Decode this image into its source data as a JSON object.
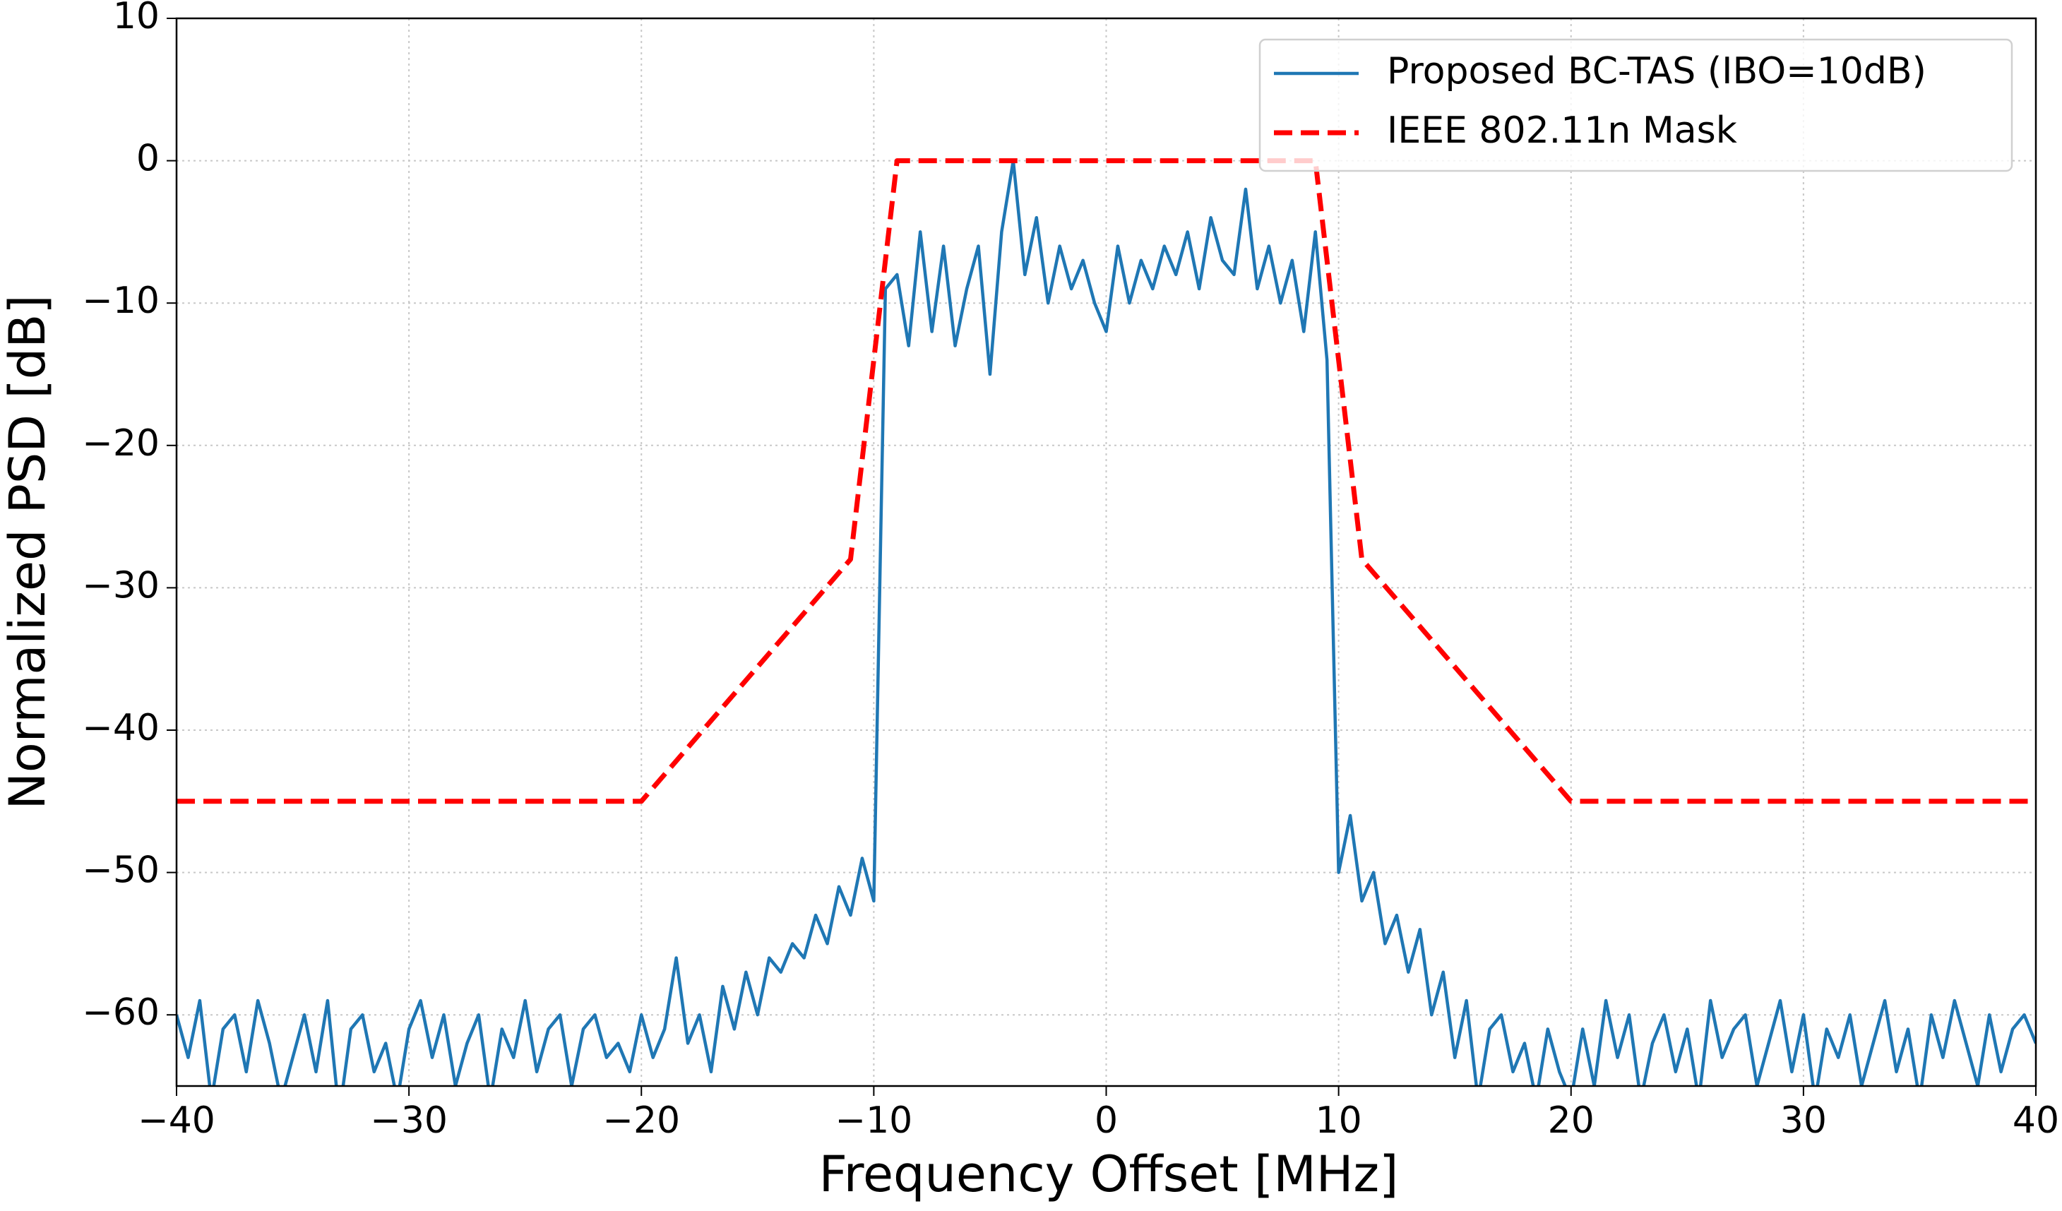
{
  "chart_data": {
    "type": "line",
    "xlabel": "Frequency Offset [MHz]",
    "ylabel": "Normalized PSD [dB]",
    "xlim": [
      -40,
      40
    ],
    "ylim": [
      -65,
      10
    ],
    "xticks": [
      {
        "value": -40,
        "label": "−40"
      },
      {
        "value": -30,
        "label": "−30"
      },
      {
        "value": -20,
        "label": "−20"
      },
      {
        "value": -10,
        "label": "−10"
      },
      0,
      10,
      20,
      30,
      40
    ],
    "yticks": [
      {
        "value": -60,
        "label": "−60"
      },
      {
        "value": -50,
        "label": "−50"
      },
      {
        "value": -40,
        "label": "−40"
      },
      {
        "value": -30,
        "label": "−30"
      },
      {
        "value": -20,
        "label": "−20"
      },
      {
        "value": -10,
        "label": "−10"
      },
      0,
      10
    ],
    "grid": true,
    "legend": "upper right",
    "series": [
      {
        "name": "Proposed BC-TAS (IBO=10dB)",
        "color": "#1f77b4",
        "style": "solid",
        "x": [
          -40,
          -39.5,
          -39,
          -38.5,
          -38,
          -37.5,
          -37,
          -36.5,
          -36,
          -35.5,
          -35,
          -34.5,
          -34,
          -33.5,
          -33,
          -32.5,
          -32,
          -31.5,
          -31,
          -30.5,
          -30,
          -29.5,
          -29,
          -28.5,
          -28,
          -27.5,
          -27,
          -26.5,
          -26,
          -25.5,
          -25,
          -24.5,
          -24,
          -23.5,
          -23,
          -22.5,
          -22,
          -21.5,
          -21,
          -20.5,
          -20,
          -19.5,
          -19,
          -18.5,
          -18,
          -17.5,
          -17,
          -16.5,
          -16,
          -15.5,
          -15,
          -14.5,
          -14,
          -13.5,
          -13,
          -12.5,
          -12,
          -11.5,
          -11,
          -10.5,
          -10,
          -9.5,
          -9,
          -8.5,
          -8,
          -7.5,
          -7,
          -6.5,
          -6,
          -5.5,
          -5,
          -4.5,
          -4,
          -3.5,
          -3,
          -2.5,
          -2,
          -1.5,
          -1,
          -0.5,
          0,
          0.5,
          1,
          1.5,
          2,
          2.5,
          3,
          3.5,
          4,
          4.5,
          5,
          5.5,
          6,
          6.5,
          7,
          7.5,
          8,
          8.5,
          9,
          9.5,
          10,
          10.5,
          11,
          11.5,
          12,
          12.5,
          13,
          13.5,
          14,
          14.5,
          15,
          15.5,
          16,
          16.5,
          17,
          17.5,
          18,
          18.5,
          19,
          19.5,
          20,
          20.5,
          21,
          21.5,
          22,
          22.5,
          23,
          23.5,
          24,
          24.5,
          25,
          25.5,
          26,
          26.5,
          27,
          27.5,
          28,
          28.5,
          29,
          29.5,
          30,
          30.5,
          31,
          31.5,
          32,
          32.5,
          33,
          33.5,
          34,
          34.5,
          35,
          35.5,
          36,
          36.5,
          37,
          37.5,
          38,
          38.5,
          39,
          39.5,
          40
        ],
        "values": [
          -60,
          -63,
          -59,
          -66,
          -61,
          -60,
          -64,
          -59,
          -62,
          -66,
          -63,
          -60,
          -64,
          -59,
          -67,
          -61,
          -60,
          -64,
          -62,
          -66,
          -61,
          -59,
          -63,
          -60,
          -65,
          -62,
          -60,
          -66,
          -61,
          -63,
          -59,
          -64,
          -61,
          -60,
          -65,
          -61,
          -60,
          -63,
          -62,
          -64,
          -60,
          -63,
          -61,
          -56,
          -62,
          -60,
          -64,
          -58,
          -61,
          -57,
          -60,
          -56,
          -57,
          -55,
          -56,
          -53,
          -55,
          -51,
          -53,
          -49,
          -52,
          -9,
          -8,
          -13,
          -5,
          -12,
          -6,
          -13,
          -9,
          -6,
          -15,
          -5,
          0,
          -8,
          -4,
          -10,
          -6,
          -9,
          -7,
          -10,
          -12,
          -6,
          -10,
          -7,
          -9,
          -6,
          -8,
          -5,
          -9,
          -4,
          -7,
          -8,
          -2,
          -9,
          -6,
          -10,
          -7,
          -12,
          -5,
          -14,
          -50,
          -46,
          -52,
          -50,
          -55,
          -53,
          -57,
          -54,
          -60,
          -57,
          -63,
          -59,
          -66,
          -61,
          -60,
          -64,
          -62,
          -66,
          -61,
          -64,
          -66,
          -61,
          -65,
          -59,
          -63,
          -60,
          -66,
          -62,
          -60,
          -64,
          -61,
          -66,
          -59,
          -63,
          -61,
          -60,
          -65,
          -62,
          -59,
          -64,
          -60,
          -66,
          -61,
          -63,
          -60,
          -65,
          -62,
          -59,
          -64,
          -61,
          -66,
          -60,
          -63,
          -59,
          -62,
          -65,
          -60,
          -64,
          -61,
          -60,
          -62
        ]
      },
      {
        "name": "IEEE 802.11n Mask",
        "color": "#ff0000",
        "style": "dashed",
        "x": [
          -40,
          -20,
          -11,
          -9,
          9,
          11,
          20,
          40
        ],
        "values": [
          -45,
          -45,
          -28,
          0,
          0,
          -28,
          -45,
          -45
        ]
      }
    ]
  }
}
